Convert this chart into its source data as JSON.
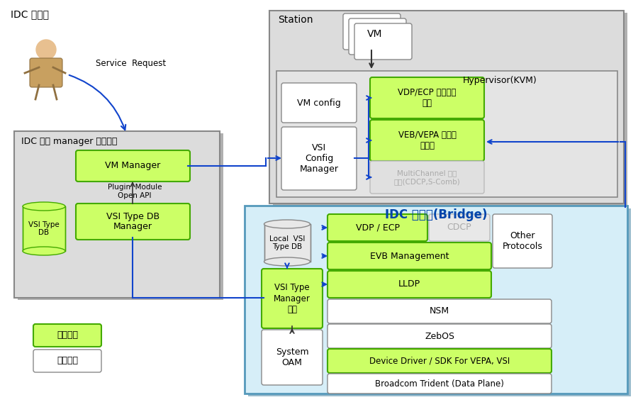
{
  "bg_color": "#ffffff",
  "light_gray": "#dcdcdc",
  "med_gray": "#c8c8c8",
  "light_blue_fill": "#d6eef8",
  "light_blue_border": "#5599bb",
  "light_green": "#ccff66",
  "white": "#ffffff",
  "blue_arrow": "#1144cc",
  "dark_arrow": "#333333",
  "green_border": "#44aa00",
  "gray_border": "#888888",
  "text_black": "#111111",
  "text_blue": "#0044aa",
  "text_gray": "#aaaaaa",
  "idc_manager_label": "IDC 관리자",
  "service_request": "Service  Request",
  "idc_box_label": "IDC 통합 manager 시험환경",
  "plugin_text": "Plugin  Module\nOpen API",
  "vm_manager": "VM Manager",
  "vsi_type_db_manager": "VSI Type DB\nManager",
  "vsi_type_db": "VSI Type\nDB",
  "station_label": "Station",
  "vm_label": "VM",
  "hypervisor_label": "Hypervisor(KVM)",
  "vm_config": "VM config",
  "vsi_config_manager": "VSI\nConfig\nManager",
  "vdp_ecp_module": "VDP/ECP 시험지원\n모듈",
  "veb_vepa_module": "VEB/VEPA 시험지\n원모듈",
  "multichannel_module": "MultiChannel 시험\n모듈(CDCP,S-Comb)",
  "idc_switch_label": "IDC 스위치(Bridge)",
  "local_vsi_db": "Local  VSI\nType DB",
  "vsi_type_manager": "VSI Type\nManager\n연동",
  "system_oam": "System\nOAM",
  "vdp_ecp": "VDP / ECP",
  "cdcp": "CDCP",
  "other_protocols": "Other\nProtocols",
  "evb_management": "EVB Management",
  "lldp": "LLDP",
  "nsm": "NSM",
  "zebos": "ZebOS",
  "device_driver": "Device Driver / SDK For VEPA, VSI",
  "broadcom": "Broadcom Trident (Data Plane)",
  "legend_dev": "개발영역",
  "legend_base": "기존기술"
}
